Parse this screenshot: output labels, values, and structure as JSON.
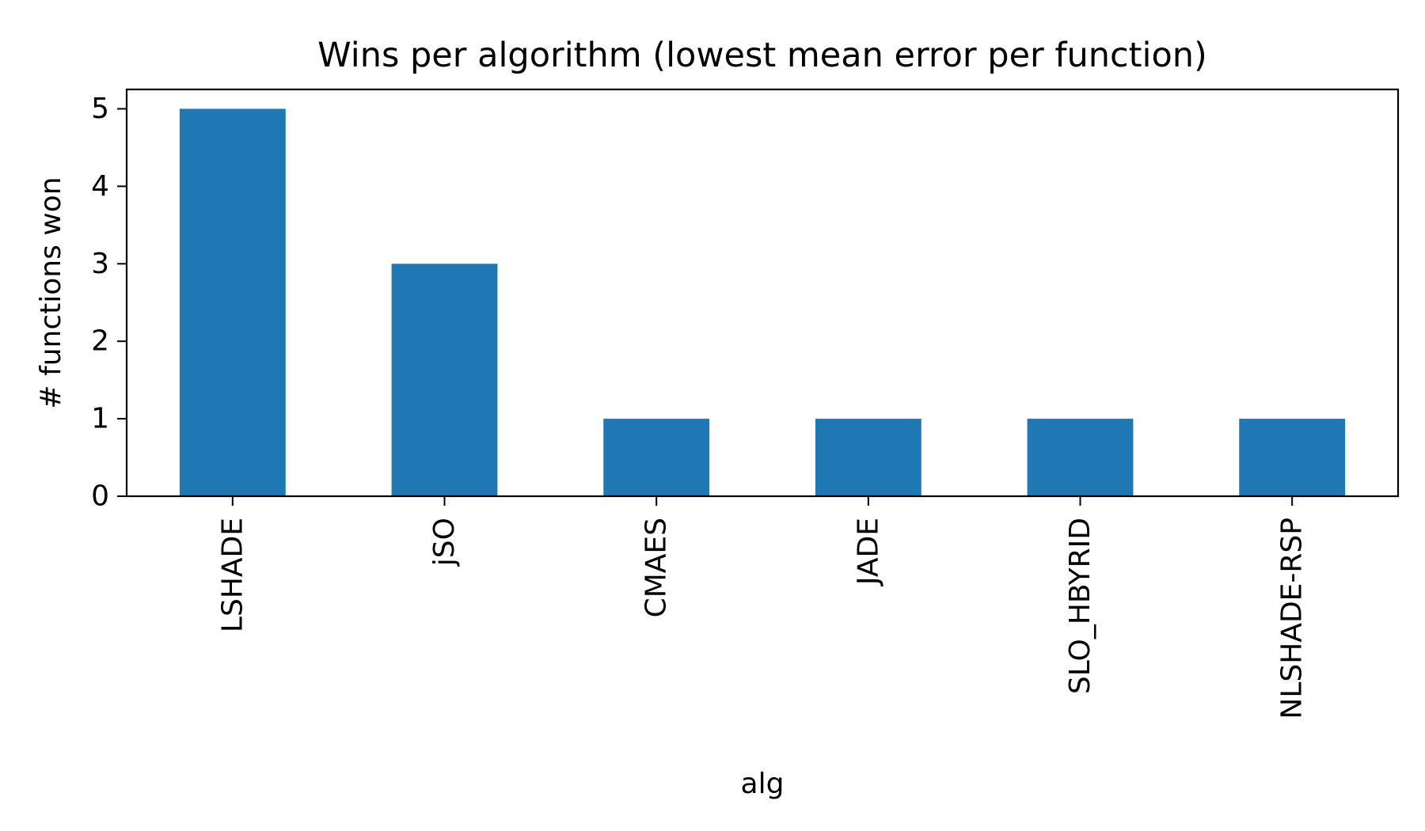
{
  "chart_data": {
    "type": "bar",
    "title": "Wins per algorithm (lowest mean error per function)",
    "xlabel": "alg",
    "ylabel": "# functions won",
    "categories": [
      "LSHADE",
      "jSO",
      "CMAES",
      "JADE",
      "SLO_HBYRID",
      "NLSHADE-RSP"
    ],
    "values": [
      5,
      3,
      1,
      1,
      1,
      1
    ],
    "ylim": [
      0,
      5.25
    ],
    "yticks": [
      "0",
      "1",
      "2",
      "3",
      "4",
      "5"
    ],
    "grid": false,
    "legend": "none",
    "bar_color": "#1f77b4"
  }
}
